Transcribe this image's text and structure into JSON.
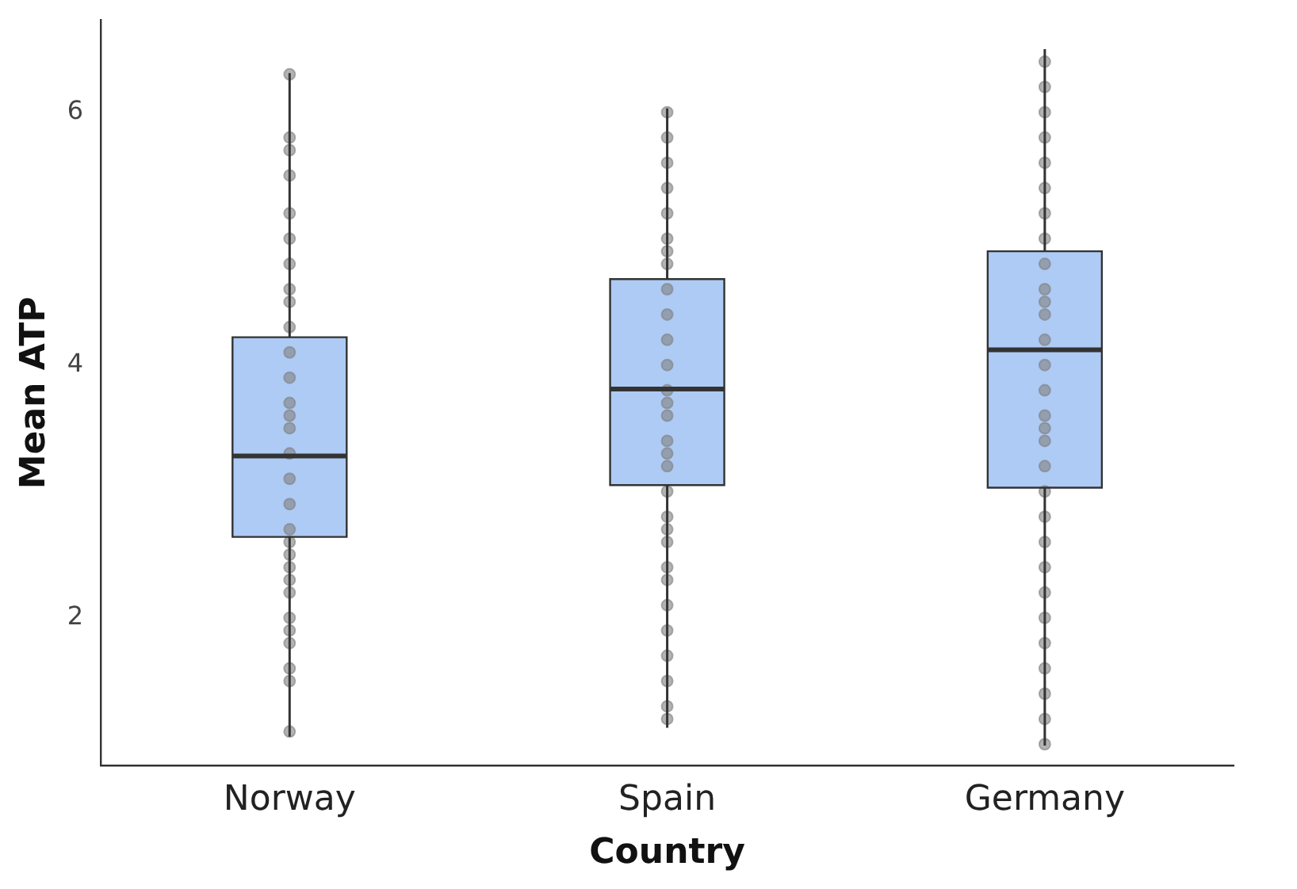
{
  "chart_data": {
    "type": "box",
    "xlabel": "Country",
    "ylabel": "Mean ATP",
    "categories": [
      "Norway",
      "Spain",
      "Germany"
    ],
    "ylim": [
      0.83,
      6.73
    ],
    "yticks": [
      2,
      4,
      6
    ],
    "grid": false,
    "legend": false,
    "color": "#aecbf5",
    "boxes": [
      {
        "low": 1.06,
        "q1": 2.64,
        "median": 3.28,
        "q3": 4.22,
        "high": 6.31
      },
      {
        "low": 1.13,
        "q1": 3.05,
        "median": 3.81,
        "q3": 4.68,
        "high": 6.03
      },
      {
        "low": 0.99,
        "q1": 3.03,
        "median": 4.12,
        "q3": 4.9,
        "high": 6.5
      }
    ],
    "series": [
      {
        "type": "scatter",
        "color": "#808080",
        "marker": "circle",
        "x": [
          "Norway",
          "Norway",
          "Norway",
          "Norway",
          "Norway",
          "Norway",
          "Norway",
          "Norway",
          "Norway",
          "Norway",
          "Norway",
          "Norway",
          "Norway",
          "Norway",
          "Norway",
          "Norway",
          "Norway",
          "Norway",
          "Norway",
          "Norway",
          "Norway",
          "Norway",
          "Norway",
          "Norway",
          "Norway",
          "Norway",
          "Norway",
          "Norway",
          "Norway",
          "Norway",
          "Spain",
          "Spain",
          "Spain",
          "Spain",
          "Spain",
          "Spain",
          "Spain",
          "Spain",
          "Spain",
          "Spain",
          "Spain",
          "Spain",
          "Spain",
          "Spain",
          "Spain",
          "Spain",
          "Spain",
          "Spain",
          "Spain",
          "Spain",
          "Spain",
          "Spain",
          "Spain",
          "Spain",
          "Spain",
          "Spain",
          "Spain",
          "Spain",
          "Spain",
          "Spain",
          "Germany",
          "Germany",
          "Germany",
          "Germany",
          "Germany",
          "Germany",
          "Germany",
          "Germany",
          "Germany",
          "Germany",
          "Germany",
          "Germany",
          "Germany",
          "Germany",
          "Germany",
          "Germany",
          "Germany",
          "Germany",
          "Germany",
          "Germany",
          "Germany",
          "Germany",
          "Germany",
          "Germany",
          "Germany",
          "Germany",
          "Germany",
          "Germany",
          "Germany",
          "Germany"
        ],
        "values": [
          6.3,
          5.8,
          5.7,
          5.5,
          5.2,
          5.0,
          4.8,
          4.6,
          4.3,
          4.1,
          3.9,
          3.7,
          3.5,
          3.3,
          3.1,
          2.9,
          2.7,
          2.6,
          2.5,
          2.4,
          2.3,
          2.2,
          2.0,
          1.9,
          1.8,
          1.6,
          1.5,
          1.1,
          4.5,
          3.6,
          6.0,
          5.8,
          5.6,
          5.4,
          5.2,
          5.0,
          4.8,
          4.6,
          4.4,
          4.2,
          4.0,
          3.8,
          3.6,
          3.4,
          3.2,
          3.0,
          2.8,
          2.6,
          2.4,
          2.3,
          2.1,
          1.9,
          1.7,
          1.5,
          1.3,
          1.2,
          4.9,
          3.7,
          3.3,
          2.7,
          6.4,
          6.2,
          6.0,
          5.8,
          5.6,
          5.4,
          5.2,
          5.0,
          4.8,
          4.6,
          4.4,
          4.2,
          4.0,
          3.8,
          3.6,
          3.4,
          3.2,
          3.0,
          2.8,
          2.6,
          2.4,
          2.2,
          2.0,
          1.8,
          1.6,
          1.4,
          1.2,
          1.0,
          4.5,
          3.5
        ]
      }
    ]
  }
}
